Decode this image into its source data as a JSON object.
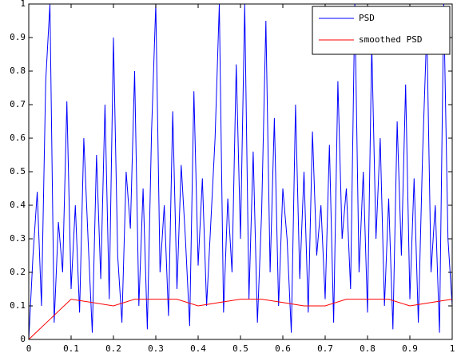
{
  "chart_data": {
    "type": "line",
    "xlim": [
      0,
      1
    ],
    "ylim": [
      0,
      1
    ],
    "xticks": [
      0,
      0.1,
      0.2,
      0.3,
      0.4,
      0.5,
      0.6,
      0.7,
      0.8,
      0.9,
      1
    ],
    "yticks": [
      0,
      0.1,
      0.2,
      0.3,
      0.4,
      0.5,
      0.6,
      0.7,
      0.8,
      0.9,
      1
    ],
    "legend": "northeast",
    "grid": false,
    "series": [
      {
        "name": "PSD",
        "color": "#0000ff",
        "x": [
          0,
          0.01,
          0.02,
          0.03,
          0.04,
          0.05,
          0.06,
          0.07,
          0.08,
          0.09,
          0.1,
          0.11,
          0.12,
          0.13,
          0.14,
          0.15,
          0.16,
          0.17,
          0.18,
          0.19,
          0.2,
          0.21,
          0.22,
          0.23,
          0.24,
          0.25,
          0.26,
          0.27,
          0.28,
          0.29,
          0.3,
          0.31,
          0.32,
          0.33,
          0.34,
          0.35,
          0.36,
          0.37,
          0.38,
          0.39,
          0.4,
          0.41,
          0.42,
          0.43,
          0.44,
          0.45,
          0.46,
          0.47,
          0.48,
          0.49,
          0.5,
          0.51,
          0.52,
          0.53,
          0.54,
          0.55,
          0.56,
          0.57,
          0.58,
          0.59,
          0.6,
          0.61,
          0.62,
          0.63,
          0.64,
          0.65,
          0.66,
          0.67,
          0.68,
          0.69,
          0.7,
          0.71,
          0.72,
          0.73,
          0.74,
          0.75,
          0.76,
          0.77,
          0.78,
          0.79,
          0.8,
          0.81,
          0.82,
          0.83,
          0.84,
          0.85,
          0.86,
          0.87,
          0.88,
          0.89,
          0.9,
          0.91,
          0.92,
          0.93,
          0.94,
          0.95,
          0.96,
          0.97,
          0.98,
          0.99,
          1
        ],
        "values": [
          0,
          0.25,
          0.44,
          0.1,
          0.77,
          1,
          0.05,
          0.35,
          0.2,
          0.71,
          0.15,
          0.4,
          0.08,
          0.6,
          0.3,
          0.02,
          0.55,
          0.18,
          0.7,
          0.12,
          0.9,
          0.25,
          0.05,
          0.5,
          0.33,
          0.8,
          0.1,
          0.45,
          0.03,
          0.62,
          1,
          0.2,
          0.4,
          0.07,
          0.68,
          0.15,
          0.52,
          0.3,
          0.04,
          0.74,
          0.22,
          0.48,
          0.1,
          0.35,
          0.6,
          1,
          0.08,
          0.42,
          0.2,
          0.82,
          0.3,
          1,
          0.12,
          0.56,
          0.05,
          0.38,
          0.95,
          0.2,
          0.66,
          0.1,
          0.45,
          0.3,
          0.02,
          0.7,
          0.18,
          0.5,
          0.08,
          0.62,
          0.25,
          0.4,
          0.12,
          0.58,
          0.05,
          0.77,
          0.3,
          0.45,
          0.15,
          1,
          0.2,
          0.5,
          0.08,
          0.88,
          0.3,
          0.6,
          0.1,
          0.42,
          0.03,
          0.65,
          0.25,
          0.76,
          0.12,
          0.48,
          0.05,
          0.55,
          0.93,
          0.2,
          0.4,
          0.02,
          1,
          0.3,
          0.1
        ]
      },
      {
        "name": "smoothed PSD",
        "color": "#ff0000",
        "x": [
          0,
          0.05,
          0.1,
          0.15,
          0.2,
          0.25,
          0.3,
          0.35,
          0.4,
          0.45,
          0.5,
          0.55,
          0.6,
          0.65,
          0.7,
          0.75,
          0.8,
          0.85,
          0.9,
          0.95,
          1
        ],
        "values": [
          0,
          0.06,
          0.12,
          0.11,
          0.1,
          0.12,
          0.12,
          0.12,
          0.1,
          0.11,
          0.12,
          0.12,
          0.11,
          0.1,
          0.1,
          0.12,
          0.12,
          0.12,
          0.1,
          0.11,
          0.12
        ]
      }
    ]
  }
}
